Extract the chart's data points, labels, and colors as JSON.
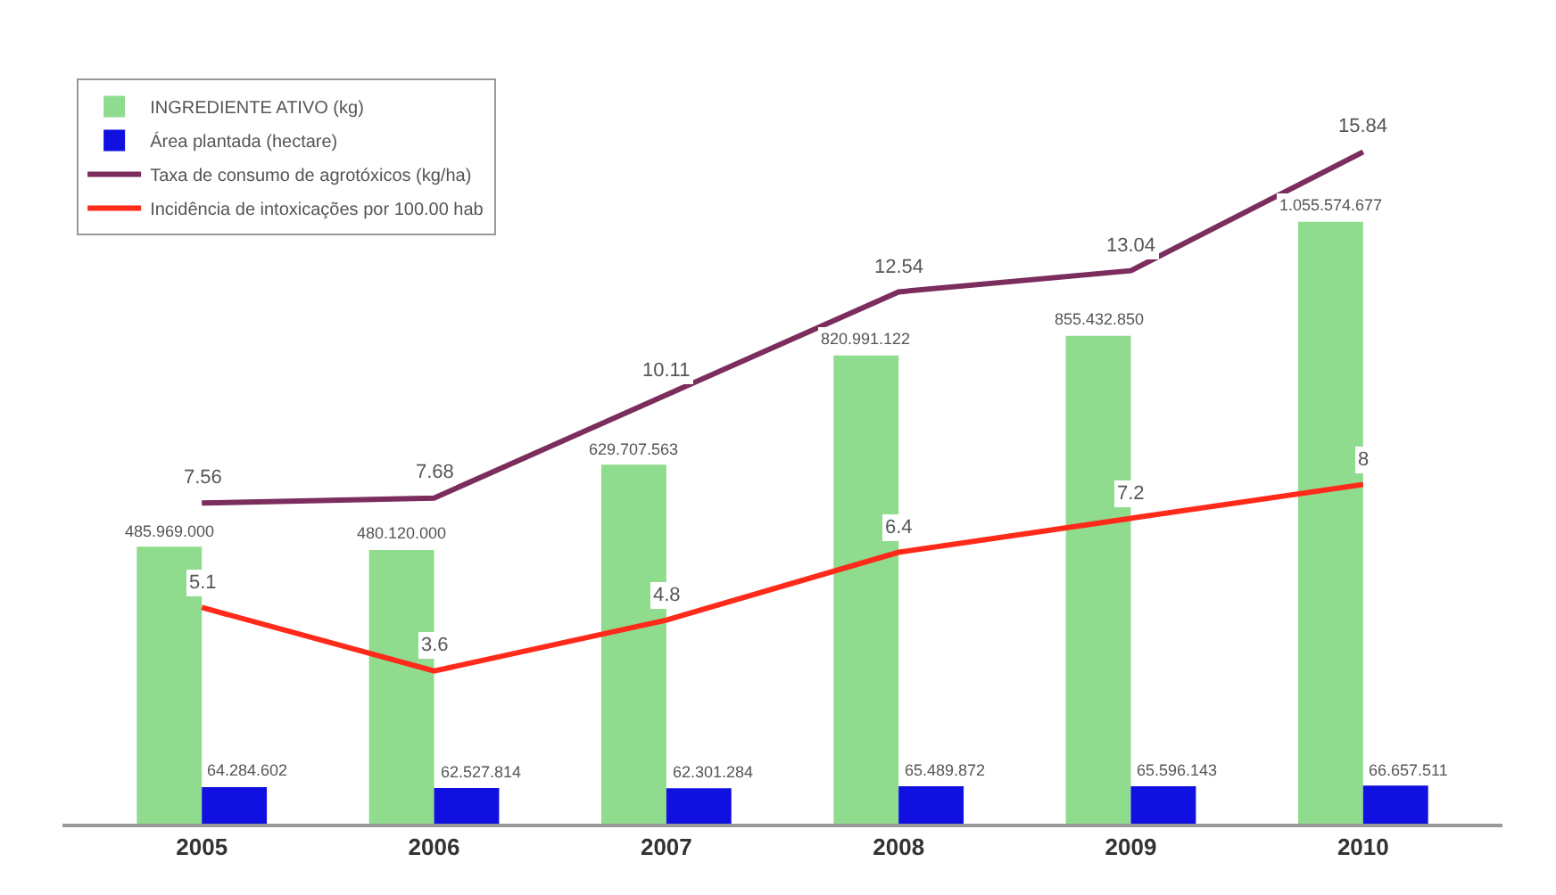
{
  "chart_data": {
    "type": "bar",
    "categories": [
      "2005",
      "2006",
      "2007",
      "2008",
      "2009",
      "2010"
    ],
    "series": [
      {
        "name": "INGREDIENTE ATIVO (kg)",
        "axis": "y",
        "color": "#8fdc8f",
        "values": [
          485969000,
          480120000,
          629707563,
          820991122,
          855432850,
          1055574677
        ],
        "value_labels": [
          "485.969.000",
          "480.120.000",
          "629.707.563",
          "820.991.122",
          "855.432.850",
          "1.055.574.677"
        ]
      },
      {
        "name": "Área plantada (hectare)",
        "axis": "y",
        "color": "#1010e0",
        "values": [
          64284602,
          62527814,
          62301284,
          65489872,
          65596143,
          66657511
        ],
        "value_labels": [
          "64.284.602",
          "62.527.814",
          "62.301.284",
          "65.489.872",
          "65.596.143",
          "66.657.511"
        ]
      },
      {
        "name": "Taxa de consumo de agrotóxicos (kg/ha)",
        "type": "line",
        "axis": "y2",
        "color": "#7b2d5e",
        "values": [
          7.56,
          7.68,
          10.11,
          12.54,
          13.04,
          15.84
        ],
        "value_labels": [
          "7.56",
          "7.68",
          "10.11",
          "12.54",
          "13.04",
          "15.84"
        ]
      },
      {
        "name": "Incidência de intoxicações por 100.00 hab",
        "type": "line",
        "axis": "y2",
        "color": "#ff2a1a",
        "values": [
          5.1,
          3.6,
          4.8,
          6.4,
          7.2,
          8
        ],
        "value_labels": [
          "5.1",
          "3.6",
          "4.8",
          "6.4",
          "7.2",
          "8"
        ]
      }
    ],
    "tick_labels": "x",
    "legend": "top left",
    "marker": "none",
    "line_style": "solid"
  }
}
